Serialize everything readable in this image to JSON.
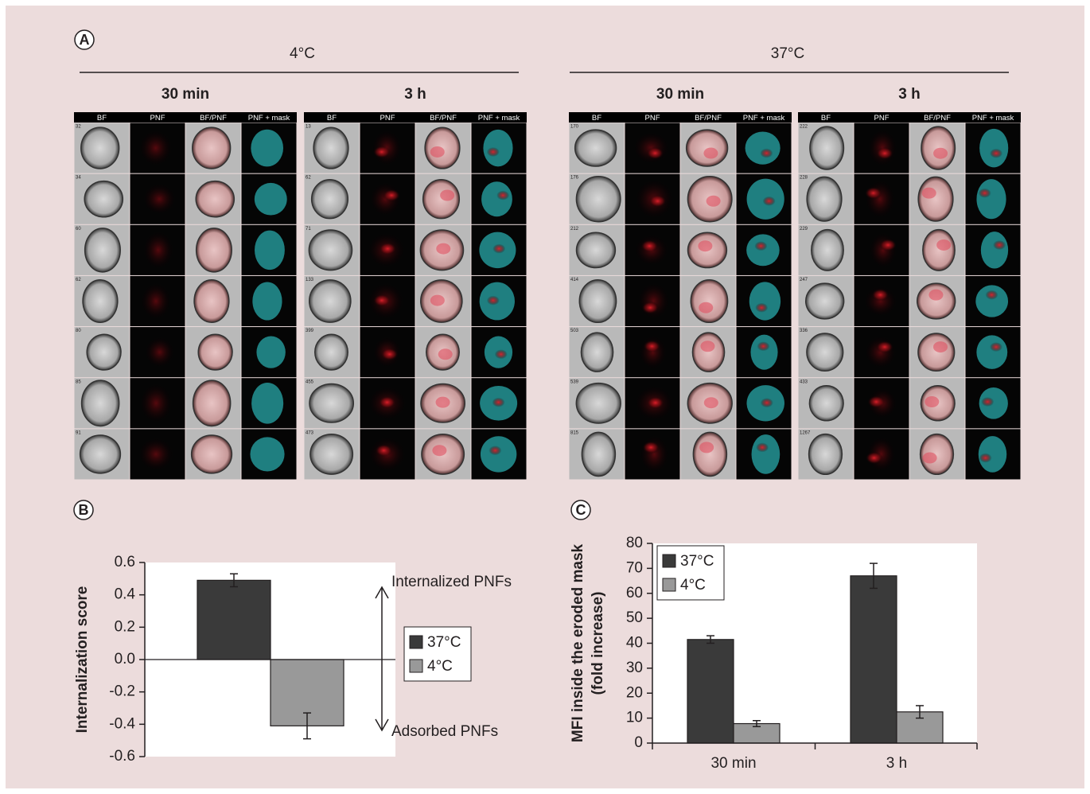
{
  "panel_labels": [
    "A",
    "B",
    "C"
  ],
  "panel_a": {
    "columns": [
      "BF",
      "PNF",
      "BF/PNF",
      "PNF + mask"
    ],
    "groups": [
      {
        "temperature": "4°C",
        "subpanels": [
          {
            "time": "30 min",
            "cell_ids": [
              "32",
              "34",
              "60",
              "62",
              "80",
              "85",
              "91"
            ]
          },
          {
            "time": "3 h",
            "cell_ids": [
              "13",
              "62",
              "71",
              "133",
              "399",
              "455",
              "473"
            ]
          }
        ]
      },
      {
        "temperature": "37°C",
        "subpanels": [
          {
            "time": "30 min",
            "cell_ids": [
              "170",
              "176",
              "212",
              "414",
              "503",
              "539",
              "815"
            ]
          },
          {
            "time": "3 h",
            "cell_ids": [
              "222",
              "228",
              "229",
              "247",
              "336",
              "433",
              "1267"
            ]
          }
        ]
      }
    ]
  },
  "chart_data": [
    {
      "type": "bar",
      "ylabel": "Internalization score",
      "ylim": [
        -0.6,
        0.6
      ],
      "yticks": [
        -0.6,
        -0.4,
        -0.2,
        {
          "value": 0,
          "label": "0.0"
        },
        0.2,
        0.4,
        0.6
      ],
      "series": [
        {
          "name": "37°C",
          "color": "#3a3a3a",
          "values": [
            0.49
          ],
          "errors": [
            0.04
          ]
        },
        {
          "name": "4°C",
          "color": "#999999",
          "values": [
            -0.41
          ],
          "errors": [
            0.08
          ]
        }
      ],
      "annotations": [
        "Internalized PNFs",
        "Adsorbed PNFs"
      ]
    },
    {
      "type": "bar",
      "ylabel_lines": [
        "MFI inside the eroded mask",
        "(fold increase)"
      ],
      "categories": [
        "30 min",
        "3 h"
      ],
      "ylim": [
        0,
        80
      ],
      "yticks": [
        0,
        10,
        20,
        30,
        40,
        50,
        60,
        70,
        80
      ],
      "series": [
        {
          "name": "37°C",
          "color": "#3a3a3a",
          "values": [
            41.5,
            67
          ],
          "errors": [
            1.5,
            5
          ]
        },
        {
          "name": "4°C",
          "color": "#999999",
          "values": [
            7.8,
            12.5
          ],
          "errors": [
            1.2,
            2.5
          ]
        }
      ]
    }
  ]
}
